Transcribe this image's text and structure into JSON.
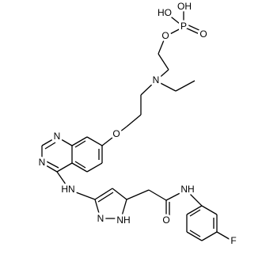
{
  "molecule": {
    "atom_labels": [
      "HO",
      "OH",
      "P",
      "O",
      "O",
      "N",
      "O",
      "N",
      "N",
      "HN",
      "N",
      "NH",
      "O",
      "NH",
      "F"
    ]
  }
}
